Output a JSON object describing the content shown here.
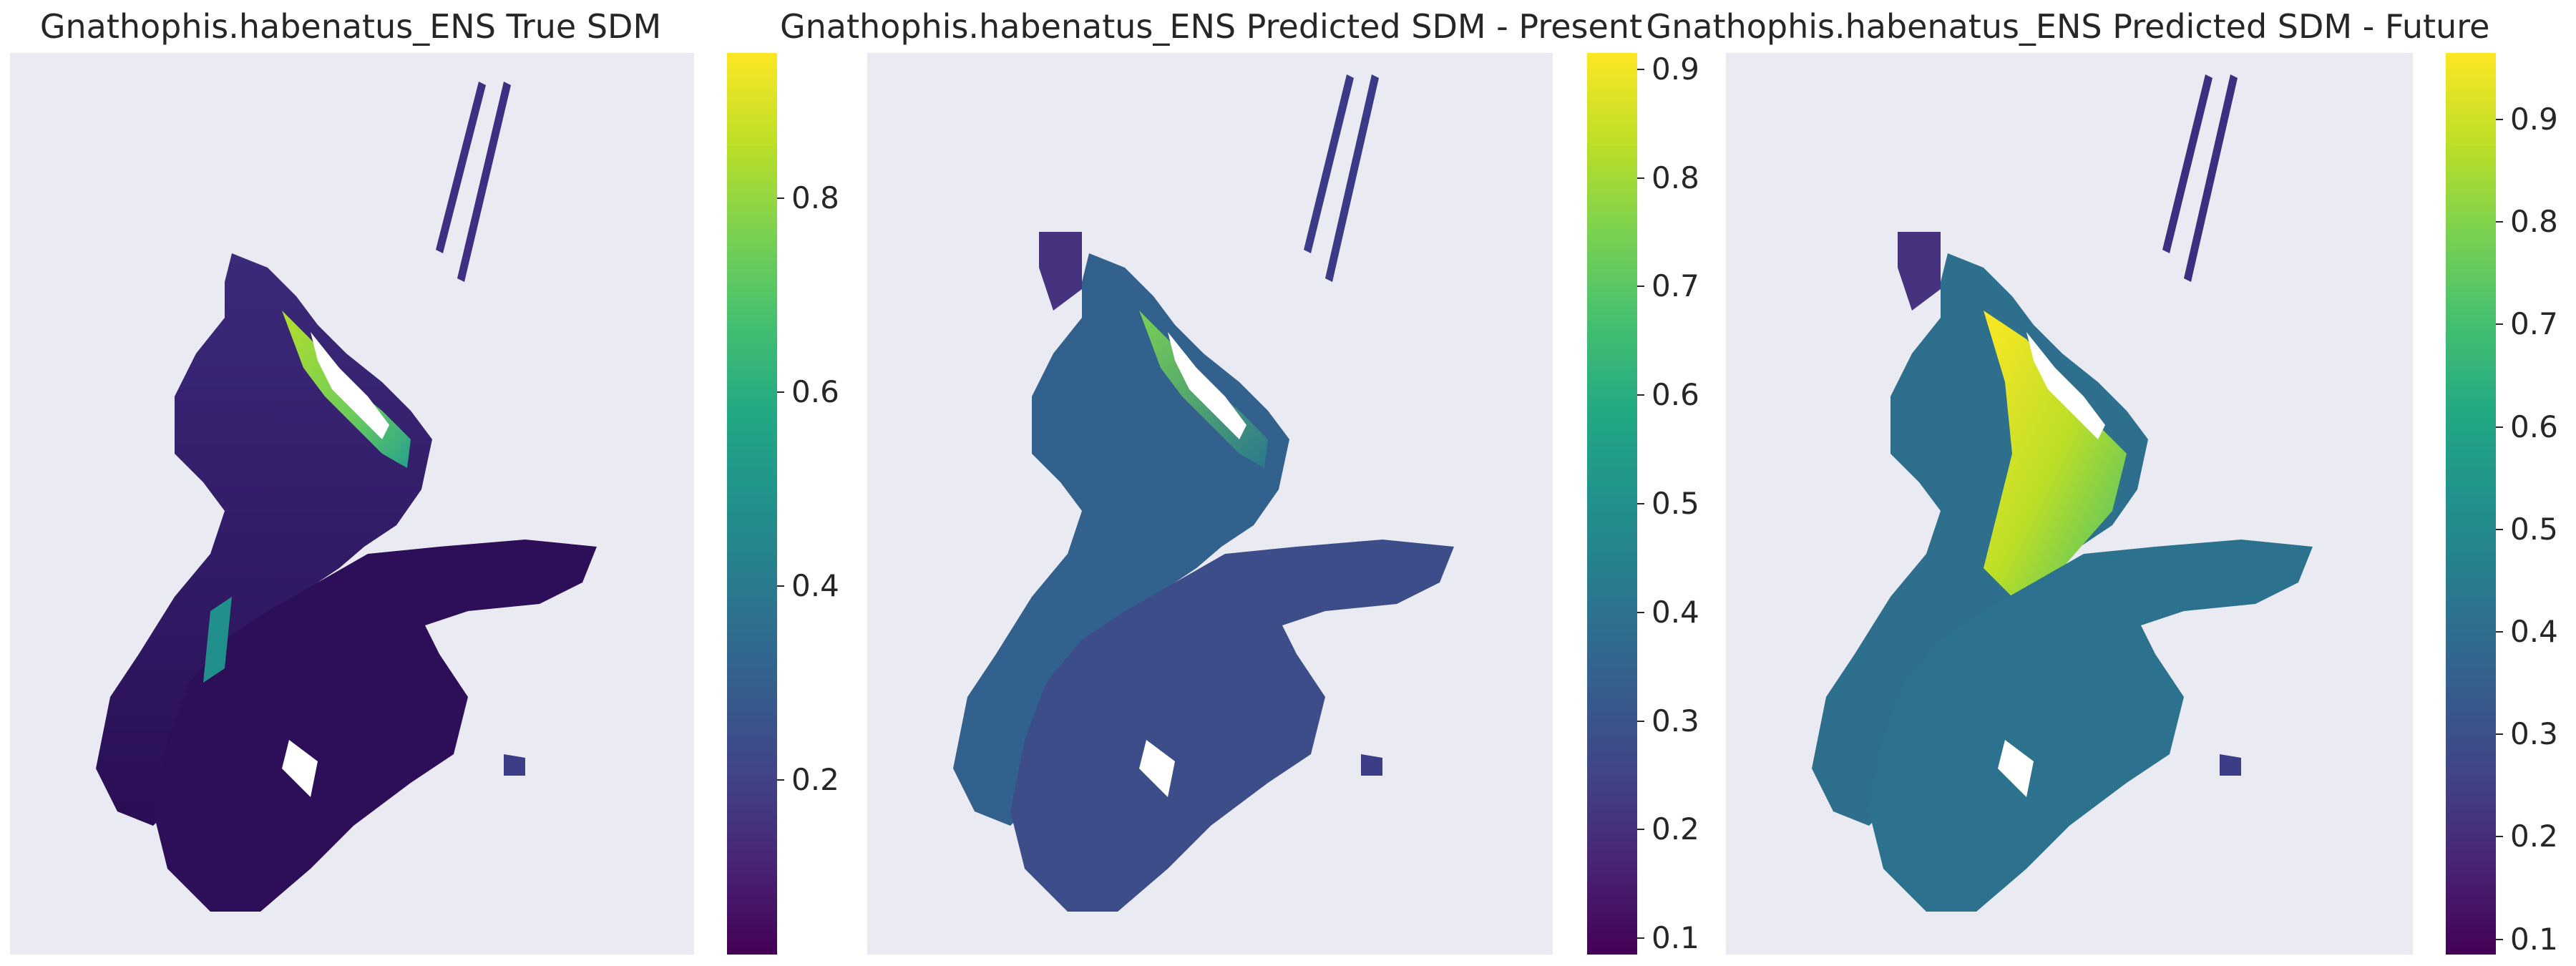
{
  "chart_data": [
    {
      "type": "heatmap",
      "title": "Gnathophis.habenatus_ENS True SDM",
      "colormap": "viridis",
      "colorbar_range": [
        0.02,
        0.95
      ],
      "colorbar_ticks": [
        "0.2",
        "0.4",
        "0.6",
        "0.8"
      ],
      "background": "#eaeaf2",
      "grid": false
    },
    {
      "type": "heatmap",
      "title": "Gnathophis.habenatus_ENS Predicted SDM - Present",
      "colormap": "viridis",
      "colorbar_range": [
        0.085,
        0.915
      ],
      "colorbar_ticks": [
        "0.1",
        "0.2",
        "0.3",
        "0.4",
        "0.5",
        "0.6",
        "0.7",
        "0.8",
        "0.9"
      ],
      "background": "#eaeaf2",
      "grid": false
    },
    {
      "type": "heatmap",
      "title": "Gnathophis.habenatus_ENS Predicted SDM - Future",
      "colormap": "viridis",
      "colorbar_range": [
        0.085,
        0.965
      ],
      "colorbar_ticks": [
        "0.1",
        "0.2",
        "0.3",
        "0.4",
        "0.5",
        "0.6",
        "0.7",
        "0.8",
        "0.9"
      ],
      "background": "#eaeaf2",
      "grid": false
    }
  ]
}
